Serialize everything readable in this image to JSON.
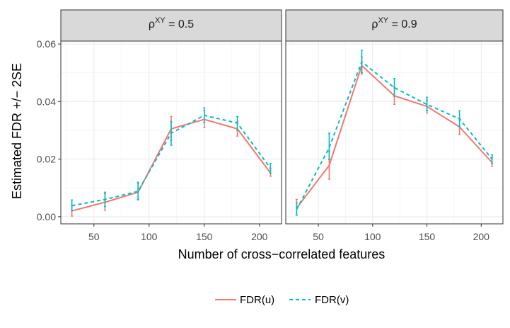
{
  "chart_data": {
    "type": "line",
    "xlabel": "Number of cross−correlated features",
    "ylabel": "Estimated FDR +/− 2SE",
    "xlim": [
      20,
      220
    ],
    "ylim": [
      -0.0025,
      0.061
    ],
    "x_ticks": [
      "50",
      "100",
      "150",
      "200"
    ],
    "x_tick_values": [
      50,
      100,
      150,
      200
    ],
    "y_ticks": [
      "0.00",
      "0.02",
      "0.04",
      "0.06"
    ],
    "y_tick_values": [
      0.0,
      0.02,
      0.04,
      0.06
    ],
    "grid": true,
    "legend_position": "bottom",
    "colors": {
      "FDR(u)": "#F8766D",
      "FDR(v)": "#00BFC4"
    },
    "legend": [
      {
        "label": "FDR(u)",
        "style": "solid",
        "color": "#F8766D"
      },
      {
        "label": "FDR(v)",
        "style": "dashed",
        "color": "#00BFC4"
      }
    ],
    "panels": [
      {
        "strip_base": "ρ",
        "strip_sup": "XY",
        "strip_rest": " = 0.5",
        "series": [
          {
            "name": "FDR(u)",
            "x": [
              30,
              60,
              90,
              120,
              150,
              180,
              210
            ],
            "y": [
              0.002,
              0.005,
              0.0085,
              0.0305,
              0.0338,
              0.0305,
              0.0152
            ],
            "lo": [
              0.0002,
              0.0022,
              0.0058,
              0.0265,
              0.031,
              0.028,
              0.014
            ],
            "hi": [
              0.004,
              0.008,
              0.0115,
              0.0348,
              0.0368,
              0.033,
              0.0168
            ]
          },
          {
            "name": "FDR(v)",
            "x": [
              30,
              60,
              90,
              120,
              150,
              180,
              210
            ],
            "y": [
              0.0038,
              0.006,
              0.0088,
              0.029,
              0.0352,
              0.0325,
              0.0168
            ],
            "lo": [
              0.002,
              0.0035,
              0.006,
              0.0248,
              0.0328,
              0.03,
              0.015
            ],
            "hi": [
              0.0058,
              0.0085,
              0.012,
              0.033,
              0.0378,
              0.0348,
              0.0185
            ]
          }
        ]
      },
      {
        "strip_base": "ρ",
        "strip_sup": "XY",
        "strip_rest": " = 0.9",
        "series": [
          {
            "name": "FDR(u)",
            "x": [
              30,
              60,
              90,
              120,
              150,
              180,
              210
            ],
            "y": [
              0.003,
              0.0178,
              0.0525,
              0.042,
              0.0383,
              0.0312,
              0.0188
            ],
            "lo": [
              0.0005,
              0.013,
              0.0495,
              0.039,
              0.036,
              0.0285,
              0.0175
            ],
            "hi": [
              0.006,
              0.0228,
              0.0555,
              0.045,
              0.0405,
              0.0342,
              0.0205
            ]
          },
          {
            "name": "FDR(v)",
            "x": [
              30,
              60,
              90,
              120,
              150,
              180,
              210
            ],
            "y": [
              0.0025,
              0.024,
              0.0538,
              0.0448,
              0.039,
              0.034,
              0.02
            ],
            "lo": [
              0.0005,
              0.0198,
              0.05,
              0.0418,
              0.0368,
              0.0312,
              0.0185
            ],
            "hi": [
              0.0048,
              0.029,
              0.0578,
              0.048,
              0.0415,
              0.0368,
              0.0215
            ]
          }
        ]
      }
    ]
  }
}
